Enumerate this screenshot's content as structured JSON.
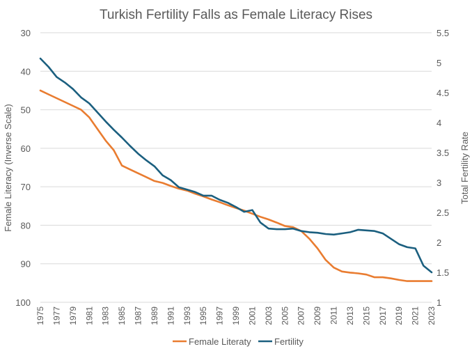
{
  "chart_data": {
    "type": "line",
    "title": "Turkish Fertility Falls as Female Literacy Rises",
    "y_left_label": "Female Literacy (Inverse Scale)",
    "y_right_label": "Total Fertility Rate",
    "y_left_range": [
      100,
      30
    ],
    "y_left_ticks": [
      "30",
      "40",
      "50",
      "60",
      "70",
      "80",
      "90",
      "100"
    ],
    "y_right_range": [
      1,
      5.5
    ],
    "y_right_ticks": [
      "1",
      "1.5",
      "2",
      "2.5",
      "3",
      "3.5",
      "4",
      "4.5",
      "5",
      "5.5"
    ],
    "x_range": [
      1975,
      2023
    ],
    "x_tick_labels": [
      "1975",
      "1977",
      "1979",
      "1981",
      "1983",
      "1985",
      "1987",
      "1989",
      "1991",
      "1993",
      "1995",
      "1997",
      "1999",
      "2001",
      "2003",
      "2005",
      "2007",
      "2009",
      "2011",
      "2013",
      "2015",
      "2017",
      "2019",
      "2021",
      "2023"
    ],
    "grid": "horizontal",
    "legend_position": "bottom",
    "series": [
      {
        "name": "Female Literaty",
        "axis": "left",
        "color": "#E97C30",
        "x": [
          1975,
          1976,
          1977,
          1978,
          1979,
          1980,
          1981,
          1982,
          1983,
          1984,
          1985,
          1986,
          1987,
          1988,
          1989,
          1990,
          1991,
          1992,
          1993,
          1994,
          1995,
          1996,
          1997,
          1998,
          1999,
          2000,
          2001,
          2002,
          2003,
          2004,
          2005,
          2006,
          2007,
          2008,
          2009,
          2010,
          2011,
          2012,
          2013,
          2014,
          2015,
          2016,
          2017,
          2018,
          2019,
          2020,
          2021,
          2022,
          2023
        ],
        "values": [
          45,
          46,
          47,
          48,
          49,
          50,
          52,
          55,
          58,
          60.5,
          64.5,
          65.5,
          66.5,
          67.5,
          68.5,
          69,
          69.8,
          70.5,
          71,
          71.8,
          72.5,
          73.3,
          74,
          74.8,
          75.5,
          76.2,
          77,
          77.8,
          78.5,
          79.3,
          80.2,
          80.5,
          81.5,
          83.5,
          86,
          89,
          91,
          92,
          92.3,
          92.5,
          92.8,
          93.5,
          93.5,
          93.8,
          94.2,
          94.5,
          94.5,
          94.5,
          94.5
        ]
      },
      {
        "name": "Fertility",
        "axis": "right",
        "color": "#1B5F7F",
        "x": [
          1975,
          1976,
          1977,
          1978,
          1979,
          1980,
          1981,
          1982,
          1983,
          1984,
          1985,
          1986,
          1987,
          1988,
          1989,
          1990,
          1991,
          1992,
          1993,
          1994,
          1995,
          1996,
          1997,
          1998,
          1999,
          2000,
          2001,
          2002,
          2003,
          2004,
          2005,
          2006,
          2007,
          2008,
          2009,
          2010,
          2011,
          2012,
          2013,
          2014,
          2015,
          2016,
          2017,
          2018,
          2019,
          2020,
          2021,
          2022,
          2023
        ],
        "values": [
          5.07,
          4.93,
          4.76,
          4.67,
          4.56,
          4.42,
          4.32,
          4.17,
          4.02,
          3.88,
          3.75,
          3.61,
          3.48,
          3.37,
          3.27,
          3.12,
          3.04,
          2.92,
          2.88,
          2.84,
          2.78,
          2.78,
          2.71,
          2.66,
          2.59,
          2.51,
          2.54,
          2.33,
          2.23,
          2.22,
          2.22,
          2.23,
          2.19,
          2.17,
          2.16,
          2.14,
          2.13,
          2.15,
          2.17,
          2.21,
          2.2,
          2.19,
          2.15,
          2.06,
          1.97,
          1.92,
          1.9,
          1.61,
          1.5
        ]
      }
    ]
  }
}
